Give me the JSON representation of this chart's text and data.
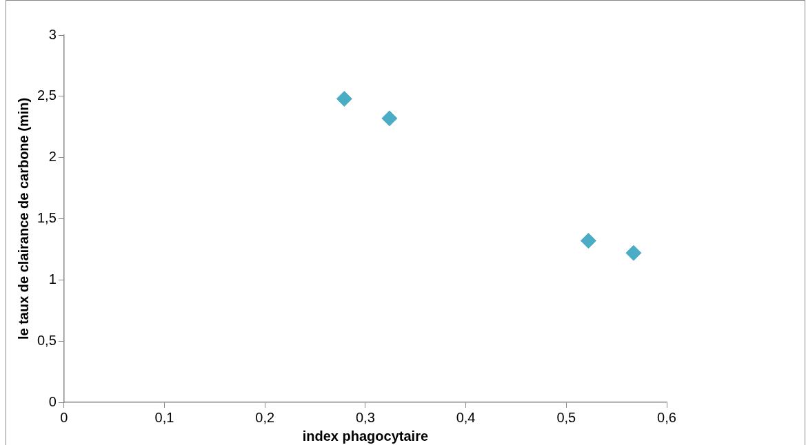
{
  "chart_data": {
    "type": "scatter",
    "xlabel": "index phagocytaire",
    "ylabel": "le taux de clairance de carbone (min)",
    "x": [
      0.279,
      0.324,
      0.522,
      0.567
    ],
    "series": [
      {
        "color": "#4bacc6",
        "values": [
          2.48,
          2.32,
          1.32,
          1.22
        ]
      }
    ],
    "xlim": [
      0,
      0.6
    ],
    "xticks": [
      {
        "value": 0,
        "label": "0"
      },
      {
        "value": 0.1,
        "label": "0,1"
      },
      {
        "value": 0.2,
        "label": "0,2"
      },
      {
        "value": 0.3,
        "label": "0,3"
      },
      {
        "value": 0.4,
        "label": "0,4"
      },
      {
        "value": 0.5,
        "label": "0,5"
      },
      {
        "value": 0.6,
        "label": "0,6"
      }
    ],
    "ylim": [
      0,
      3
    ],
    "yticks": [
      {
        "value": 0,
        "label": "0"
      },
      {
        "value": 0.5,
        "label": "0,5"
      },
      {
        "value": 1,
        "label": "1"
      },
      {
        "value": 1.5,
        "label": "1,5"
      },
      {
        "value": 2,
        "label": "2"
      },
      {
        "value": 2.5,
        "label": "2,5"
      },
      {
        "value": 3,
        "label": "3"
      }
    ],
    "grid": false,
    "legend": false,
    "marker": "diamond"
  }
}
